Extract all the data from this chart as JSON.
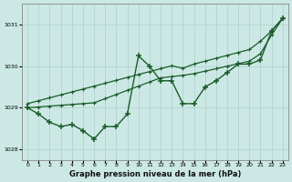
{
  "x": [
    0,
    1,
    2,
    3,
    4,
    5,
    6,
    7,
    8,
    9,
    10,
    11,
    12,
    13,
    14,
    15,
    16,
    17,
    18,
    19,
    20,
    21,
    22,
    23
  ],
  "y_main": [
    1029.0,
    1028.85,
    1028.65,
    1028.55,
    1028.6,
    1028.45,
    1028.25,
    1028.55,
    1028.55,
    1028.85,
    1030.25,
    1030.0,
    1029.65,
    1029.65,
    1029.1,
    1029.1,
    1029.5,
    1029.65,
    1029.85,
    1030.05,
    1030.05,
    1030.15,
    1030.85,
    1031.15
  ],
  "y_trend_upper": [
    1029.1,
    1029.17,
    1029.24,
    1029.31,
    1029.38,
    1029.45,
    1029.52,
    1029.59,
    1029.66,
    1029.73,
    1029.8,
    1029.87,
    1029.94,
    1030.01,
    1029.95,
    1030.05,
    1030.12,
    1030.19,
    1030.26,
    1030.33,
    1030.4,
    1030.6,
    1030.85,
    1031.15
  ],
  "y_trend_lower": [
    1029.0,
    1029.02,
    1029.04,
    1029.06,
    1029.08,
    1029.1,
    1029.12,
    1029.22,
    1029.32,
    1029.42,
    1029.52,
    1029.62,
    1029.72,
    1029.75,
    1029.78,
    1029.82,
    1029.88,
    1029.94,
    1030.0,
    1030.06,
    1030.12,
    1030.3,
    1030.75,
    1031.15
  ],
  "bg_color": "#cce8e4",
  "grid_color": "#aad0cc",
  "line_color": "#1a5c2a",
  "xlabel": "Graphe pression niveau de la mer (hPa)",
  "ylim": [
    1027.75,
    1031.5
  ],
  "xlim": [
    -0.5,
    23.5
  ],
  "yticks": [
    1028,
    1029,
    1030,
    1031
  ],
  "xticks": [
    0,
    1,
    2,
    3,
    4,
    5,
    6,
    7,
    8,
    9,
    10,
    11,
    12,
    13,
    14,
    15,
    16,
    17,
    18,
    19,
    20,
    21,
    22,
    23
  ]
}
